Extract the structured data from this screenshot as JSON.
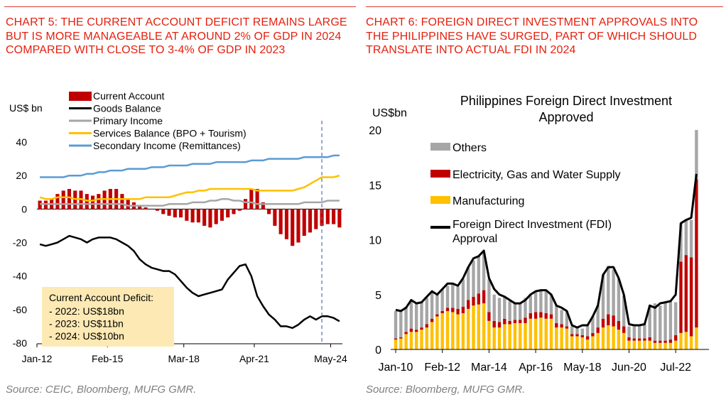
{
  "left": {
    "title": "CHART 5: THE CURRENT ACCOUNT DEFICIT REMAINS LARGE BUT IS MORE MANAGEABLE AT AROUND 2% OF GDP IN 2024 COMPARED WITH CLOSE TO 3-4% OF GDP IN 2023",
    "source": "Source: CEIC, Bloomberg, MUFG GMR.",
    "annotation": {
      "title": "Current Account Deficit:",
      "lines": [
        "- 2022: US$18bn",
        "- 2023: US$11bn",
        "- 2024: US$10bn"
      ]
    }
  },
  "right": {
    "title": "CHART 6: FOREIGN DIRECT INVESTMENT APPROVALS INTO THE PHILIPPINES HAVE SURGED, PART OF WHICH SHOULD TRANSLATE INTO ACTUAL FDI IN 2024",
    "source": "Source: Bloomberg, MUFG GMR."
  },
  "chart_data": [
    {
      "type": "line",
      "ylabel": "US$ bn",
      "ylim": [
        -80,
        40
      ],
      "yticks": [
        40,
        20,
        0,
        -20,
        -40,
        -60,
        -80
      ],
      "x_tick_labels": [
        "Jan-12",
        "Feb-15",
        "Mar-18",
        "Apr-21",
        "May-24"
      ],
      "x_tick_quarters": [
        0,
        12,
        25,
        37,
        50
      ],
      "n_quarters": 52,
      "vline_quarter": 48.5,
      "legend_position": "top",
      "colors": {
        "current_account": "#c00000",
        "goods": "#000000",
        "primary": "#a6a6a6",
        "services": "#ffc000",
        "secondary": "#5b9bd5",
        "vline": "#4472c4",
        "annotation_bg": "#fde9b4"
      },
      "series": [
        {
          "name": "Current Account",
          "kind": "bar",
          "values": [
            5,
            5,
            6,
            9,
            11,
            12,
            11,
            11,
            9,
            8,
            9,
            11,
            12,
            12,
            9,
            6,
            4,
            2,
            1,
            0,
            -1,
            -3,
            -4,
            -5,
            -5,
            -7,
            -8,
            -8,
            -10,
            -11,
            -9,
            -7,
            -5,
            -3,
            -1,
            6,
            12,
            12,
            4,
            -3,
            -10,
            -15,
            -18,
            -22,
            -20,
            -16,
            -14,
            -12,
            -10,
            -9,
            -9,
            -11
          ]
        },
        {
          "name": "Goods Balance",
          "kind": "line",
          "values": [
            -21,
            -22,
            -21,
            -20,
            -18,
            -16,
            -17,
            -18,
            -20,
            -18,
            -17,
            -17,
            -17,
            -18,
            -20,
            -22,
            -25,
            -30,
            -33,
            -35,
            -36,
            -37,
            -37,
            -39,
            -43,
            -47,
            -50,
            -52,
            -51,
            -50,
            -49,
            -48,
            -42,
            -38,
            -34,
            -33,
            -40,
            -52,
            -58,
            -63,
            -66,
            -70,
            -70,
            -71,
            -69,
            -66,
            -64,
            -66,
            -64,
            -64,
            -65,
            -67
          ]
        },
        {
          "name": "Primary Income",
          "kind": "line",
          "values": [
            3,
            3,
            3,
            3,
            3,
            3,
            3,
            3,
            3,
            3,
            3,
            3,
            3,
            3,
            3,
            2,
            2,
            2,
            2,
            2,
            2,
            2,
            3,
            3,
            3,
            3,
            4,
            4,
            4,
            5,
            5,
            6,
            6,
            5,
            5,
            4,
            4,
            3,
            3,
            3,
            3,
            3,
            3,
            3,
            3,
            4,
            4,
            4,
            4,
            5,
            5,
            5
          ]
        },
        {
          "name": "Services Balance (BPO + Tourism)",
          "kind": "line",
          "values": [
            7,
            6,
            6,
            7,
            7,
            7,
            6,
            6,
            5,
            5,
            6,
            6,
            6,
            6,
            6,
            6,
            6,
            6,
            7,
            7,
            7,
            7,
            7,
            8,
            9,
            10,
            10,
            11,
            11,
            12,
            12,
            12,
            12,
            12,
            12,
            12,
            12,
            11,
            11,
            11,
            11,
            11,
            11,
            11,
            12,
            13,
            15,
            17,
            19,
            19,
            19,
            20
          ]
        },
        {
          "name": "Secondary Income (Remittances)",
          "kind": "line",
          "values": [
            19,
            19,
            19,
            19,
            19,
            20,
            20,
            20,
            21,
            21,
            22,
            22,
            23,
            23,
            23,
            24,
            24,
            24,
            24,
            25,
            25,
            25,
            26,
            26,
            26,
            26,
            27,
            27,
            27,
            27,
            28,
            28,
            28,
            28,
            28,
            28,
            29,
            29,
            29,
            30,
            30,
            30,
            30,
            30,
            30,
            31,
            31,
            31,
            31,
            31,
            32,
            32
          ]
        }
      ]
    },
    {
      "type": "bar",
      "stacked": true,
      "title": "Philippines Foreign Direct Investment Approved",
      "ylabel": "US$bn",
      "ylim": [
        0,
        20
      ],
      "yticks": [
        0,
        5,
        10,
        15,
        20
      ],
      "x_tick_labels": [
        "Jan-10",
        "Feb-12",
        "Mar-14",
        "Apr-16",
        "May-18",
        "Jun-20",
        "Jul-22"
      ],
      "x_tick_index": [
        0,
        9,
        18,
        27,
        36,
        45,
        54
      ],
      "legend_position": "top-left",
      "colors": {
        "Others": "#a6a6a6",
        "Electricity, Gas and Water Supply": "#c00000",
        "Manufacturing": "#ffc000",
        "Foreign Direct Investment (FDI) Approval": "#000000"
      },
      "series": [
        {
          "name": "Others",
          "kind": "bar",
          "values": [
            2.5,
            2.4,
            2.3,
            2.6,
            2.5,
            2.3,
            2.4,
            2.5,
            1.8,
            2.0,
            2.0,
            2.2,
            2.0,
            2.5,
            3.0,
            3.3,
            3.4,
            3.4,
            3.0,
            2.4,
            2.2,
            2.0,
            1.8,
            1.6,
            1.5,
            1.8,
            1.6,
            1.8,
            2.0,
            2.0,
            1.8,
            1.6,
            1.3,
            1.4,
            0.7,
            0.6,
            0.6,
            1.0,
            1.5,
            2.0,
            4.0,
            4.4,
            4.2,
            3.8,
            2.8,
            1.0,
            1.1,
            1.2,
            1.3,
            2.9,
            3.4,
            3.2,
            3.5,
            3.5,
            3.0,
            3.5,
            3.2,
            3.4,
            4.5
          ]
        },
        {
          "name": "Electricity, Gas and Water Supply",
          "kind": "bar",
          "values": [
            0.1,
            0.1,
            0.2,
            0.3,
            0.2,
            0.2,
            0.3,
            0.3,
            0.2,
            0.2,
            0.3,
            0.4,
            0.5,
            0.6,
            0.8,
            0.8,
            1.0,
            1.2,
            0.8,
            0.6,
            0.5,
            0.5,
            0.3,
            0.3,
            0.3,
            0.5,
            0.5,
            0.6,
            0.5,
            0.5,
            0.4,
            0.4,
            0.3,
            0.2,
            0.2,
            0.2,
            0.2,
            0.3,
            0.3,
            0.5,
            0.8,
            1.0,
            1.0,
            0.8,
            0.6,
            0.3,
            0.2,
            0.2,
            0.2,
            0.3,
            0.2,
            0.2,
            0.2,
            0.3,
            0.5,
            6.5,
            7.0,
            7.2,
            13.5
          ]
        },
        {
          "name": "Manufacturing",
          "kind": "bar",
          "values": [
            0.9,
            1.0,
            1.4,
            1.6,
            1.6,
            1.8,
            2.0,
            2.5,
            3.0,
            3.3,
            3.5,
            3.4,
            3.2,
            3.3,
            3.7,
            4.0,
            4.1,
            4.2,
            2.6,
            2.0,
            2.0,
            2.3,
            2.3,
            2.4,
            2.4,
            2.4,
            2.8,
            2.8,
            2.9,
            2.8,
            2.8,
            2.0,
            2.0,
            1.9,
            1.2,
            1.2,
            1.1,
            0.9,
            1.2,
            1.5,
            2.0,
            2.2,
            2.1,
            1.8,
            1.5,
            0.8,
            0.8,
            0.8,
            0.8,
            0.8,
            0.6,
            0.6,
            0.6,
            0.6,
            0.8,
            1.5,
            1.6,
            1.2,
            2.0
          ]
        },
        {
          "name": "Foreign Direct Investment (FDI) Approval",
          "kind": "line",
          "values": [
            3.6,
            3.5,
            3.8,
            4.5,
            4.2,
            4.3,
            4.8,
            5.3,
            5.0,
            5.5,
            6.0,
            6.0,
            5.8,
            6.5,
            7.5,
            8.3,
            8.5,
            9.0,
            6.5,
            5.5,
            5.0,
            4.8,
            4.5,
            4.2,
            4.2,
            4.5,
            5.0,
            5.3,
            5.4,
            5.4,
            5.0,
            4.0,
            3.8,
            3.5,
            2.2,
            2.0,
            2.2,
            2.2,
            3.0,
            4.0,
            6.8,
            7.5,
            7.5,
            6.5,
            5.0,
            2.3,
            2.2,
            2.2,
            2.3,
            4.0,
            3.8,
            4.2,
            4.3,
            4.4,
            5.0,
            11.5,
            11.8,
            12.0,
            16.0
          ]
        }
      ]
    }
  ]
}
